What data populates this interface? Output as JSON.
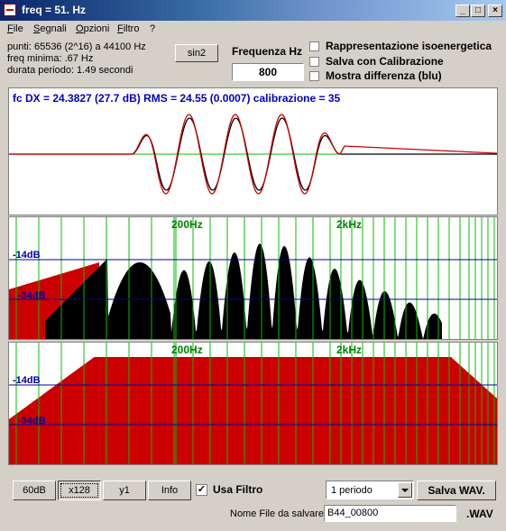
{
  "window": {
    "title": "freq = 51. Hz",
    "controls": [
      "_",
      "□",
      "×"
    ]
  },
  "menu": [
    "File",
    "Segnali",
    "Opzioni",
    "Filtro",
    "?"
  ],
  "info": {
    "line1": "punti: 65536 (2^16) a 44100 Hz",
    "line2": "freq minima: .67 Hz",
    "line3": "durata periodo: 1.49 secondi"
  },
  "sin2_button": "sin2",
  "frequency": {
    "label": "Frequenza Hz",
    "value": "800"
  },
  "checkboxes": [
    {
      "label": "Rappresentazione isoenergetica",
      "checked": false
    },
    {
      "label": "Salva con Calibrazione",
      "checked": false
    },
    {
      "label": "Mostra differenza (blu)",
      "checked": false
    }
  ],
  "waveform_panel": {
    "header": "fc DX = 24.3827 (27.7 dB) RMS = 24.55 (0.0007)  calibrazione = 35"
  },
  "spectrum_panels": [
    {
      "marker_200": "200Hz",
      "marker_2k": "2kHz",
      "level1": "-14dB",
      "level2": "-34dB"
    },
    {
      "marker_200": "200Hz",
      "marker_2k": "2kHz",
      "level1": "-14dB",
      "level2": "-34dB"
    }
  ],
  "bottom": {
    "btn_60db": "60dB",
    "btn_x128": "x128",
    "btn_y1": "y1",
    "btn_info": "Info",
    "usa_filtro": "Usa Filtro",
    "usa_filtro_checked": true,
    "period_select": "1 periodo",
    "save_wav": "Salva WAV.",
    "filename_label": "Nome File da salvare",
    "filename_value": "B44_00800",
    "extension": ".WAV"
  },
  "colors": {
    "title_gradient_start": "#0a246a",
    "signal_red": "#cc0000",
    "signal_black": "#000000",
    "grid_green": "#00c000",
    "level_blue": "#0000a0",
    "header_blue": "#0000c8"
  }
}
